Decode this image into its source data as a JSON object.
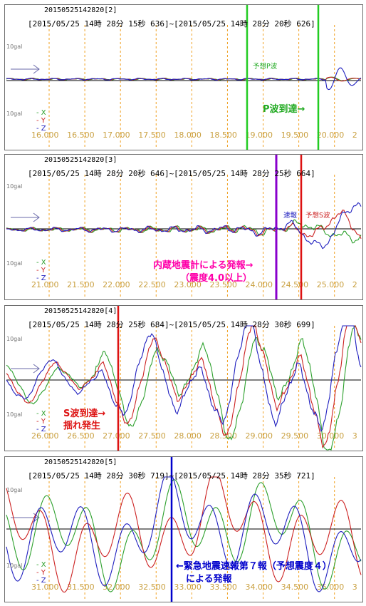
{
  "panels": [
    {
      "id": "20150525142820[2]",
      "range": "[2015/05/25 14時 28分 15秒 636]~[2015/05/25 14時 28分 20秒 626]",
      "xmin": 15.636,
      "xmax": 20.626,
      "ticks": [
        "16.000",
        "16.500",
        "17.000",
        "17.500",
        "18.000",
        "18.500",
        "19.000",
        "19.500",
        "20.000",
        "2"
      ],
      "annotations": {
        "p_wave_label": "予想P波",
        "p_arrival": "P波到達→"
      }
    },
    {
      "id": "20150525142820[3]",
      "range": "[2015/05/25 14時 28分 20秒 646]~[2015/05/25 14時 28分 25秒 664]",
      "xmin": 20.646,
      "xmax": 25.664,
      "ticks": [
        "21.000",
        "21.500",
        "22.000",
        "22.500",
        "23.000",
        "23.500",
        "24.000",
        "24.500",
        "25.000",
        "2"
      ],
      "annotations": {
        "quick_label": "速報",
        "s_wave_label": "予想S波",
        "seismometer_1": "内蔵地震計による発報→",
        "seismometer_2": "（震度4.0以上）"
      }
    },
    {
      "id": "20150525142820[4]",
      "range": "[2015/05/25 14時 28分 25秒 684]~[2015/05/25 14時 28分 30秒 699]",
      "xmin": 25.684,
      "xmax": 30.699,
      "ticks": [
        "26.000",
        "26.500",
        "27.000",
        "27.500",
        "28.000",
        "28.500",
        "29.000",
        "29.500",
        "30.000",
        "3"
      ],
      "annotations": {
        "s_arrival": "S波到達→",
        "shaking": "揺れ発生"
      }
    },
    {
      "id": "20150525142820[5]",
      "range": "[2015/05/25 14時 28分 30秒 719]~[2015/05/25 14時 28分 35秒 721]",
      "xmin": 30.719,
      "xmax": 35.721,
      "ticks": [
        "31.000",
        "31.500",
        "32.000",
        "32.500",
        "33.000",
        "33.500",
        "34.000",
        "34.500",
        "35.000",
        "3"
      ],
      "annotations": {
        "eew_1": "←緊急地震速報第７報（予想震度４）",
        "eew_2": "による発報"
      }
    }
  ],
  "common": {
    "gal_label": "10gal",
    "legend": [
      "X",
      "Y",
      "Z"
    ]
  },
  "colors": {
    "x": "#2ca02c",
    "y": "#cc2222",
    "z": "#1f1fbf",
    "grid": "#f0a020",
    "p_line": "#22cc22",
    "s_line": "#dd1111",
    "alarm": "#8800cc",
    "eew": "#0000cc",
    "p_text": "#22aa22",
    "alarm_text": "#ff00aa",
    "eew_text": "#0000cc",
    "tick_text": "#c9a040"
  },
  "chart_data": [
    {
      "type": "line",
      "title": "[2015/05/25 14時 28分 15秒 636]~[2015/05/25 14時 28分 20秒 626]",
      "xlim": [
        15.636,
        20.626
      ],
      "ylabel": "10gal",
      "series": [
        {
          "name": "X"
        },
        {
          "name": "Y"
        },
        {
          "name": "Z"
        }
      ],
      "markers": [
        {
          "x": 19.0,
          "label": "予想P波"
        },
        {
          "x": 19.65,
          "label": "P波到達→"
        }
      ]
    },
    {
      "type": "line",
      "title": "[2015/05/25 14時 28分 20秒 646]~[2015/05/25 14時 28分 25秒 664]",
      "xlim": [
        20.646,
        25.664
      ],
      "ylabel": "10gal",
      "series": [
        {
          "name": "X"
        },
        {
          "name": "Y"
        },
        {
          "name": "Z"
        }
      ],
      "markers": [
        {
          "x": 24.1,
          "label": "内蔵地震計による発報→（震度4.0以上）"
        },
        {
          "x": 24.57,
          "label": "予想S波"
        }
      ]
    },
    {
      "type": "line",
      "title": "[2015/05/25 14時 28分 25秒 684]~[2015/05/25 14時 28分 30秒 699]",
      "xlim": [
        25.684,
        30.699
      ],
      "ylabel": "10gal",
      "series": [
        {
          "name": "X"
        },
        {
          "name": "Y"
        },
        {
          "name": "Z"
        }
      ],
      "markers": [
        {
          "x": 26.95,
          "label": "S波到達→揺れ発生"
        }
      ]
    },
    {
      "type": "line",
      "title": "[2015/05/25 14時 28分 30秒 719]~[2015/05/25 14時 28分 35秒 721]",
      "xlim": [
        30.719,
        35.721
      ],
      "ylabel": "10gal",
      "series": [
        {
          "name": "X"
        },
        {
          "name": "Y"
        },
        {
          "name": "Z"
        }
      ],
      "markers": [
        {
          "x": 32.95,
          "label": "←緊急地震速報第７報（予想震度４）による発報"
        }
      ]
    }
  ]
}
